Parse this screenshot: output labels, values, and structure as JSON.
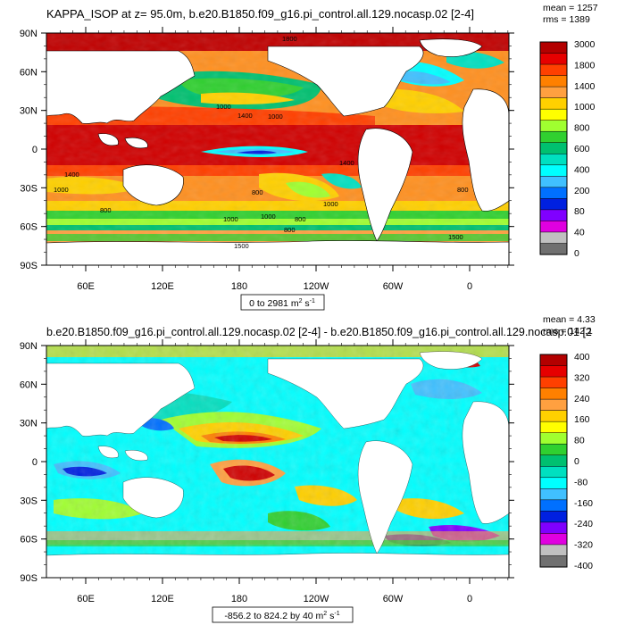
{
  "chart_data": [
    {
      "type": "heatmap",
      "title": "KAPPA_ISOP at z=  95.0m, b.e20.B1850.f09_g16.pi_control.all.129.nocasp.02 [2-4]",
      "stats": {
        "mean": "mean = 1257",
        "rms": "rms = 1389"
      },
      "y_ticks": [
        "90N",
        "60N",
        "30N",
        "0",
        "30S",
        "60S",
        "90S"
      ],
      "x_ticks": [
        "60E",
        "120E",
        "180",
        "120W",
        "60W",
        "0"
      ],
      "range_label": {
        "main": "0 to 2981 m",
        "sup": "2",
        "tail": " s",
        "sup2": "-1"
      },
      "colorbar_labels": [
        "3000",
        "1800",
        "1400",
        "1000",
        "800",
        "600",
        "400",
        "200",
        "80",
        "40",
        "0"
      ],
      "colorbar_colors": [
        "#b30000",
        "#e60000",
        "#ff4000",
        "#ff8000",
        "#ffa040",
        "#ffd000",
        "#ffff00",
        "#a0ff30",
        "#30d030",
        "#00c070",
        "#00e0c0",
        "#00ffff",
        "#40c0ff",
        "#0070ff",
        "#0020e0",
        "#8000ff",
        "#e000e0",
        "#c0c0c0",
        "#707070"
      ],
      "contour_labels": [
        "1800",
        "1400",
        "1000",
        "1000",
        "1400",
        "1400",
        "1000",
        "800",
        "800",
        "1000",
        "800",
        "1000",
        "800",
        "800",
        "1000",
        "1500",
        "1500"
      ]
    },
    {
      "type": "heatmap",
      "title": "b.e20.B1850.f09_g16.pi_control.all.129.nocasp.02 [2-4] - b.e20.B1850.f09_g16.pi_control.all.129.nocasp.01 [2",
      "stats": {
        "mean": "mean = 4.33",
        "rms": "rms = 142.1"
      },
      "y_ticks": [
        "90N",
        "60N",
        "30N",
        "0",
        "30S",
        "60S",
        "90S"
      ],
      "x_ticks": [
        "60E",
        "120E",
        "180",
        "120W",
        "60W",
        "0"
      ],
      "range_label": {
        "main": "-856.2 to 824.2 by 40 m",
        "sup": "2",
        "tail": " s",
        "sup2": "-1"
      },
      "colorbar_labels": [
        "400",
        "320",
        "240",
        "160",
        "80",
        "0",
        "-80",
        "-160",
        "-240",
        "-320",
        "-400"
      ],
      "colorbar_colors": [
        "#b30000",
        "#e60000",
        "#ff4000",
        "#ff8000",
        "#ffa040",
        "#ffd000",
        "#ffff00",
        "#a0ff30",
        "#30d030",
        "#00c070",
        "#00e0c0",
        "#00ffff",
        "#40c0ff",
        "#0070ff",
        "#0020e0",
        "#8000ff",
        "#e000e0",
        "#c0c0c0",
        "#707070"
      ]
    }
  ]
}
